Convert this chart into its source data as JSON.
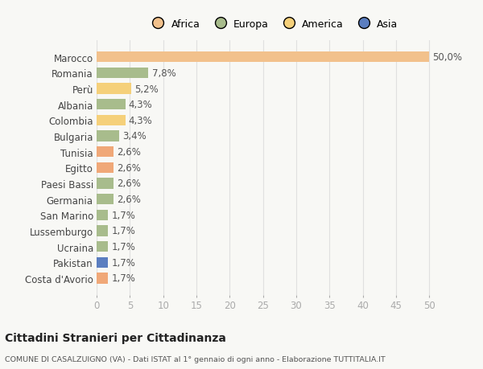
{
  "countries": [
    "Marocco",
    "Romania",
    "Perù",
    "Albania",
    "Colombia",
    "Bulgaria",
    "Tunisia",
    "Egitto",
    "Paesi Bassi",
    "Germania",
    "San Marino",
    "Lussemburgo",
    "Ucraina",
    "Pakistan",
    "Costa d'Avorio"
  ],
  "values": [
    50.0,
    7.8,
    5.2,
    4.3,
    4.3,
    3.4,
    2.6,
    2.6,
    2.6,
    2.6,
    1.7,
    1.7,
    1.7,
    1.7,
    1.7
  ],
  "labels": [
    "50,0%",
    "7,8%",
    "5,2%",
    "4,3%",
    "4,3%",
    "3,4%",
    "2,6%",
    "2,6%",
    "2,6%",
    "2,6%",
    "1,7%",
    "1,7%",
    "1,7%",
    "1,7%",
    "1,7%"
  ],
  "colors": [
    "#f2c18c",
    "#a8bc8c",
    "#f5d07a",
    "#a8bc8c",
    "#f5d07a",
    "#a8bc8c",
    "#f0a878",
    "#f0a878",
    "#a8bc8c",
    "#a8bc8c",
    "#a8bc8c",
    "#a8bc8c",
    "#a8bc8c",
    "#5b7ec0",
    "#f0a878"
  ],
  "legend_labels": [
    "Africa",
    "Europa",
    "America",
    "Asia"
  ],
  "legend_colors": [
    "#f2c18c",
    "#a8bc8c",
    "#f5d07a",
    "#5b7ec0"
  ],
  "title": "Cittadini Stranieri per Cittadinanza",
  "subtitle": "COMUNE DI CASALZUIGNO (VA) - Dati ISTAT al 1° gennaio di ogni anno - Elaborazione TUTTITALIA.IT",
  "xlim": [
    0,
    53
  ],
  "xticks": [
    0,
    5,
    10,
    15,
    20,
    25,
    30,
    35,
    40,
    45,
    50
  ],
  "background_color": "#f8f8f5",
  "bar_height": 0.68,
  "label_fontsize": 8.5,
  "tick_fontsize": 8.5,
  "grid_color": "#e0e0e0"
}
